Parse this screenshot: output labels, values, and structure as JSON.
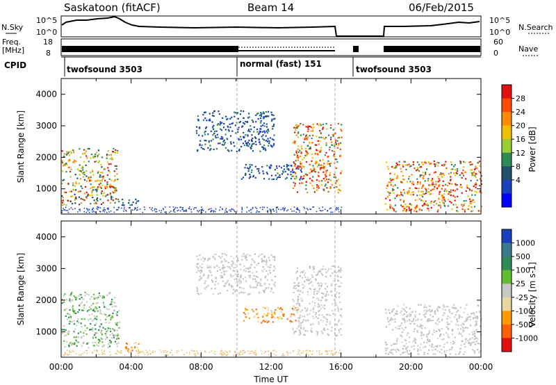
{
  "header": {
    "site": "Saskatoon (fitACF)",
    "beam": "Beam 14",
    "date": "06/Feb/2015"
  },
  "strips": {
    "nsky_label": "N.Sky",
    "nsearch_label": "N.Search",
    "nsky_ticks": [
      "10^5",
      "10^0"
    ],
    "nsearch_ticks": [
      "10^5",
      "10^0"
    ],
    "freq_label_1": "Freq.",
    "freq_label_2": "[MHz]",
    "freq_ticks": [
      "18",
      "8"
    ],
    "nave_label": "Nave",
    "nave_ticks": [
      "60",
      "0"
    ],
    "cpid_label": "CPID",
    "cpid_segments": [
      {
        "label": "twofsound 3503",
        "start": 0,
        "end": 10
      },
      {
        "label": "normal (fast) 151",
        "start": 10,
        "end": 16.5
      },
      {
        "label": "twofsound 3503",
        "start": 16.5,
        "end": 24
      }
    ]
  },
  "chart_data": [
    {
      "type": "heatmap",
      "panel": "power",
      "xlabel": "",
      "ylabel": "Slant Range [km]",
      "xlim": [
        0,
        24
      ],
      "ylim": [
        200,
        4500
      ],
      "yticks": [
        1000,
        2000,
        3000,
        4000
      ],
      "colorbar": {
        "label": "Power [dB]",
        "ticks": [
          "28",
          "24",
          "20",
          "16",
          "12",
          "8",
          "4"
        ],
        "colors": [
          "#e01010",
          "#ff4a00",
          "#ff8c00",
          "#f0c000",
          "#9acd32",
          "#2e8b57",
          "#20506e",
          "#1a3fbf",
          "#0000ff"
        ]
      },
      "echo_regions": [
        {
          "t0": 0.0,
          "t1": 3.2,
          "r0": 500,
          "r1": 2300,
          "level": "mixed"
        },
        {
          "t0": 3.2,
          "t1": 4.4,
          "r0": 400,
          "r1": 700,
          "level": "low"
        },
        {
          "t0": 7.7,
          "t1": 12.2,
          "r0": 2200,
          "r1": 3500,
          "level": "low"
        },
        {
          "t0": 10.2,
          "t1": 13.8,
          "r0": 1300,
          "r1": 1800,
          "level": "low"
        },
        {
          "t0": 13.2,
          "t1": 16.0,
          "r0": 900,
          "r1": 3100,
          "level": "high"
        },
        {
          "t0": 18.5,
          "t1": 24.0,
          "r0": 300,
          "r1": 1900,
          "level": "high"
        }
      ]
    },
    {
      "type": "heatmap",
      "panel": "velocity",
      "xlabel": "Time UT",
      "ylabel": "Slant Range [km]",
      "xlim": [
        0,
        24
      ],
      "ylim": [
        200,
        4500
      ],
      "yticks": [
        1000,
        2000,
        3000,
        4000
      ],
      "xticks": [
        "00:00",
        "04:00",
        "08:00",
        "12:00",
        "16:00",
        "20:00",
        "00:00"
      ],
      "colorbar": {
        "label": "Velocity [m s-1]",
        "ticks": [
          "1000",
          "500",
          "100",
          "25",
          "-25",
          "-100",
          "-500",
          "-1000"
        ],
        "colors": [
          "#1a3fbf",
          "#3a7a8a",
          "#2e8b57",
          "#5fbf30",
          "#c8c8c4",
          "#e8d8a0",
          "#ff9a00",
          "#ff6000",
          "#e01010"
        ]
      },
      "echo_regions": [
        {
          "t0": 0.0,
          "t1": 3.3,
          "r0": 500,
          "r1": 2300,
          "level": "mixed"
        },
        {
          "t0": 3.3,
          "t1": 4.4,
          "r0": 400,
          "r1": 700,
          "level": "orange"
        },
        {
          "t0": 7.7,
          "t1": 12.2,
          "r0": 2200,
          "r1": 3500,
          "level": "grey"
        },
        {
          "t0": 10.4,
          "t1": 13.6,
          "r0": 1300,
          "r1": 1800,
          "level": "orange"
        },
        {
          "t0": 13.2,
          "t1": 16.0,
          "r0": 900,
          "r1": 3100,
          "level": "grey"
        },
        {
          "t0": 18.5,
          "t1": 24.0,
          "r0": 300,
          "r1": 1900,
          "level": "grey"
        }
      ]
    }
  ]
}
